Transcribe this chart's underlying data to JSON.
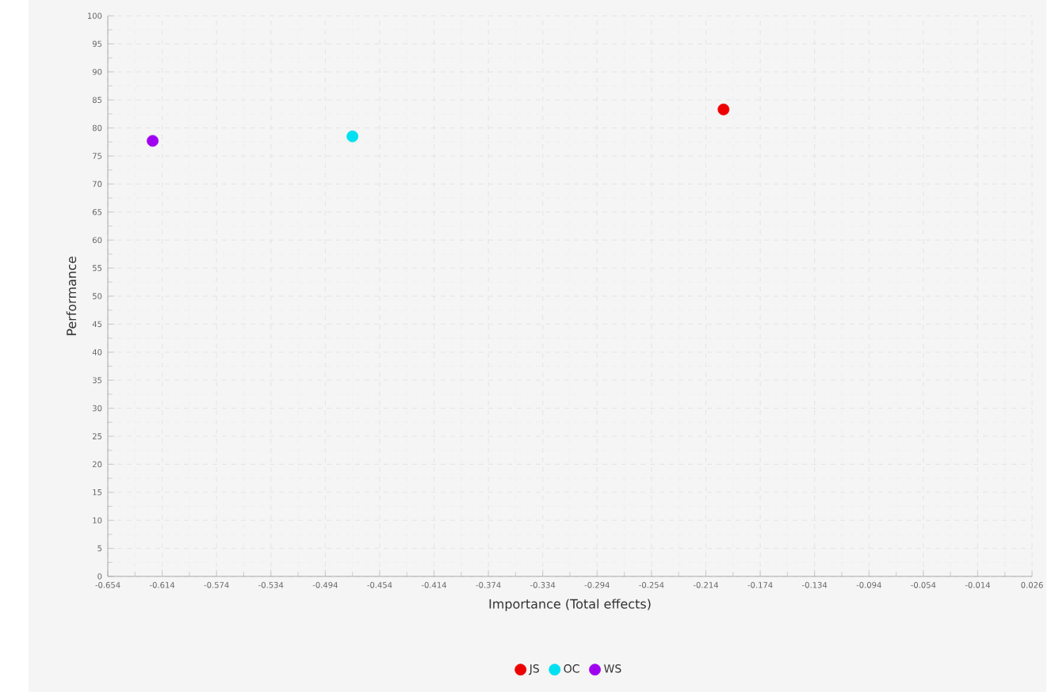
{
  "chart_data": {
    "type": "scatter",
    "xlabel": "Importance (Total effects)",
    "ylabel": "Performance",
    "xlim": [
      -0.654,
      0.026
    ],
    "ylim": [
      0,
      100
    ],
    "xticks": [
      -0.654,
      -0.614,
      -0.574,
      -0.534,
      -0.494,
      -0.454,
      -0.414,
      -0.374,
      -0.334,
      -0.294,
      -0.254,
      -0.214,
      -0.174,
      -0.134,
      -0.094,
      -0.054,
      -0.014,
      0.026
    ],
    "yticks": [
      0,
      5,
      10,
      15,
      20,
      25,
      30,
      35,
      40,
      45,
      50,
      55,
      60,
      65,
      70,
      75,
      80,
      85,
      90,
      95,
      100
    ],
    "grid": true,
    "legend": "bottom",
    "marker": "circle",
    "series": [
      {
        "name": "JS",
        "color": "#ee0000",
        "x": [
          -0.201
        ],
        "values": [
          83.3
        ]
      },
      {
        "name": "OC",
        "color": "#00e0f0",
        "x": [
          -0.474
        ],
        "values": [
          78.5
        ]
      },
      {
        "name": "WS",
        "color": "#a000f0",
        "x": [
          -0.621
        ],
        "values": [
          77.7
        ]
      }
    ]
  }
}
